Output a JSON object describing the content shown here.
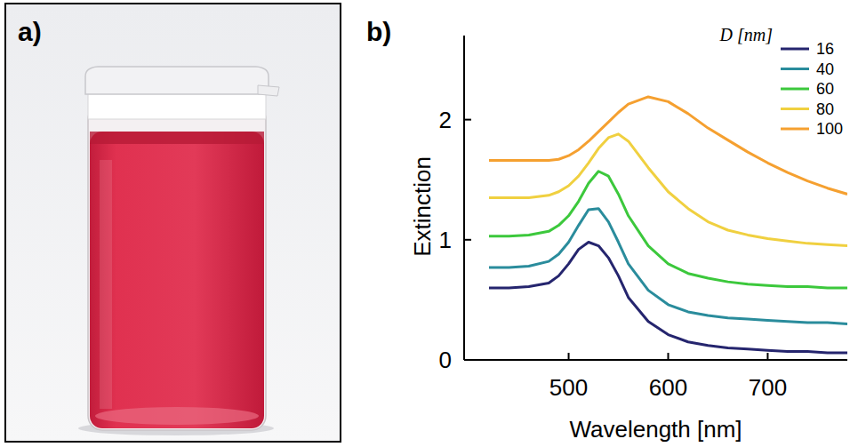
{
  "panel_labels": [
    "a)",
    "b)"
  ],
  "chart_data": {
    "type": "line",
    "x_label": "Wavelength [nm]",
    "y_label": "Extinction",
    "legend_title": "D [nm]",
    "x": [
      420,
      440,
      460,
      480,
      490,
      500,
      510,
      520,
      530,
      540,
      550,
      560,
      580,
      600,
      620,
      640,
      660,
      680,
      700,
      720,
      740,
      760,
      780
    ],
    "series": [
      {
        "name": "16",
        "color": "#25256e",
        "values": [
          0.6,
          0.6,
          0.61,
          0.64,
          0.7,
          0.8,
          0.92,
          0.98,
          0.95,
          0.85,
          0.7,
          0.52,
          0.32,
          0.21,
          0.15,
          0.12,
          0.1,
          0.09,
          0.08,
          0.07,
          0.07,
          0.06,
          0.06
        ]
      },
      {
        "name": "40",
        "color": "#2a8c9c",
        "values": [
          0.77,
          0.77,
          0.78,
          0.82,
          0.88,
          0.98,
          1.12,
          1.25,
          1.26,
          1.15,
          0.98,
          0.8,
          0.58,
          0.46,
          0.4,
          0.37,
          0.35,
          0.34,
          0.33,
          0.32,
          0.31,
          0.31,
          0.3
        ]
      },
      {
        "name": "60",
        "color": "#3cc83c",
        "values": [
          1.03,
          1.03,
          1.04,
          1.07,
          1.12,
          1.2,
          1.32,
          1.47,
          1.57,
          1.53,
          1.38,
          1.2,
          0.95,
          0.8,
          0.72,
          0.68,
          0.65,
          0.63,
          0.62,
          0.61,
          0.61,
          0.6,
          0.6
        ]
      },
      {
        "name": "80",
        "color": "#f0d040",
        "values": [
          1.35,
          1.35,
          1.35,
          1.37,
          1.4,
          1.45,
          1.53,
          1.64,
          1.76,
          1.85,
          1.88,
          1.82,
          1.6,
          1.4,
          1.26,
          1.15,
          1.08,
          1.04,
          1.01,
          0.99,
          0.97,
          0.96,
          0.95
        ]
      },
      {
        "name": "100",
        "color": "#f5a030",
        "values": [
          1.66,
          1.66,
          1.66,
          1.66,
          1.67,
          1.7,
          1.75,
          1.82,
          1.9,
          1.98,
          2.06,
          2.13,
          2.19,
          2.15,
          2.05,
          1.93,
          1.83,
          1.73,
          1.64,
          1.56,
          1.49,
          1.43,
          1.38
        ]
      }
    ],
    "xlim": [
      395,
      780
    ],
    "ylim": [
      0,
      2.7
    ],
    "xticks": [
      500,
      600,
      700
    ],
    "yticks": [
      0,
      1,
      2
    ],
    "legend": "upper right",
    "grid": false
  }
}
